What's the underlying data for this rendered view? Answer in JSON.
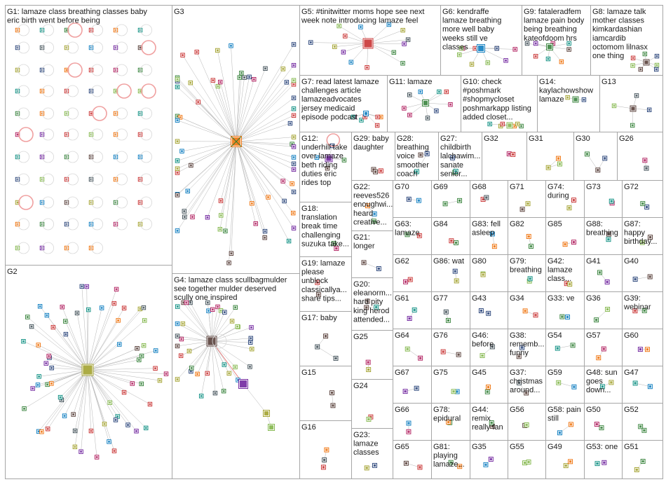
{
  "panels": [
    {
      "id": "G1",
      "lines": [
        "G1: lamaze class breathing classes baby",
        "eric birth went before being"
      ]
    },
    {
      "id": "G2",
      "lines": [
        "G2"
      ]
    },
    {
      "id": "G3",
      "lines": [
        "G3"
      ]
    },
    {
      "id": "G4",
      "lines": [
        "G4: lamaze class scullbagmulder",
        "see together mulder deserved",
        "scully one inspired"
      ]
    },
    {
      "id": "G5",
      "lines": [
        "G5: #tinitwitter moms hope see next",
        "week note introducing lamaze feel"
      ]
    },
    {
      "id": "G6",
      "lines": [
        "G6: kendraffe",
        "lamaze breathing",
        "more well baby",
        "weeks still ve",
        "classes"
      ]
    },
    {
      "id": "G9",
      "lines": [
        "G9: fataleradfem",
        "lamaze pain body",
        "being breathing",
        "kateofdoom hrs"
      ]
    },
    {
      "id": "G8",
      "lines": [
        "G8: lamaze talk",
        "mother classes",
        "kimkardashian",
        "iamcardib",
        "octomom lilnasx",
        "one thing"
      ]
    },
    {
      "id": "G7",
      "lines": [
        "G7: read latest lamaze",
        "challenges article",
        "lamazeadvocates",
        "jersey medicaid",
        "episode podcast"
      ]
    },
    {
      "id": "G11",
      "lines": [
        "G11: lamaze"
      ]
    },
    {
      "id": "G10",
      "lines": [
        "G10: check",
        "#poshmark",
        "#shopmycloset",
        "poshmarkapp listing",
        "added closet..."
      ]
    },
    {
      "id": "G14",
      "lines": [
        "G14:",
        "kaylachowshow",
        "lamaze"
      ]
    },
    {
      "id": "G13",
      "lines": [
        "G13"
      ]
    },
    {
      "id": "G12",
      "lines": [
        "G12:",
        "underhill take",
        "over lamaze",
        "beth riding",
        "duties eric",
        "rides top"
      ]
    },
    {
      "id": "G29",
      "lines": [
        "G29: baby",
        "daughter"
      ]
    },
    {
      "id": "G28",
      "lines": [
        "G28:",
        "breathing",
        "voice",
        "smoother",
        "coach"
      ]
    },
    {
      "id": "G27",
      "lines": [
        "G27:",
        "childbirth",
        "lalchawim...",
        "sanate",
        "senior..."
      ]
    },
    {
      "id": "G32",
      "lines": [
        "G32"
      ]
    },
    {
      "id": "G31",
      "lines": [
        "G31"
      ]
    },
    {
      "id": "G30",
      "lines": [
        "G30"
      ]
    },
    {
      "id": "G26",
      "lines": [
        "G26"
      ]
    },
    {
      "id": "G18",
      "lines": [
        "G18:",
        "translation",
        "break time",
        "challenging",
        "suzuka take..."
      ]
    },
    {
      "id": "G22",
      "lines": [
        "G22:",
        "reeves526",
        "enoughwi...",
        "heard",
        "creative..."
      ]
    },
    {
      "id": "G21",
      "lines": [
        "G21:",
        "longer"
      ]
    },
    {
      "id": "G19",
      "lines": [
        "G19: lamaze",
        "please",
        "unblock",
        "classicallya...",
        "share tips..."
      ]
    },
    {
      "id": "G20",
      "lines": [
        "G20:",
        "eleanorm...",
        "hard pity",
        "king herod",
        "attended..."
      ]
    },
    {
      "id": "G17",
      "lines": [
        "G17: baby"
      ]
    },
    {
      "id": "G25",
      "lines": [
        "G25"
      ]
    },
    {
      "id": "G15",
      "lines": [
        "G15"
      ]
    },
    {
      "id": "G24",
      "lines": [
        "G24"
      ]
    },
    {
      "id": "G16",
      "lines": [
        "G16"
      ]
    },
    {
      "id": "G23",
      "lines": [
        "G23:",
        "lamaze",
        "classes"
      ]
    },
    {
      "id": "G70",
      "lines": [
        "G70"
      ]
    },
    {
      "id": "G69",
      "lines": [
        "G69"
      ]
    },
    {
      "id": "G68",
      "lines": [
        "G68"
      ]
    },
    {
      "id": "G71",
      "lines": [
        "G71"
      ]
    },
    {
      "id": "G74",
      "lines": [
        "G74:",
        "during"
      ]
    },
    {
      "id": "G73",
      "lines": [
        "G73"
      ]
    },
    {
      "id": "G72",
      "lines": [
        "G72"
      ]
    },
    {
      "id": "G63",
      "lines": [
        "G63:",
        "lamaze"
      ]
    },
    {
      "id": "G84",
      "lines": [
        "G84"
      ]
    },
    {
      "id": "G83",
      "lines": [
        "G83: fell",
        "asleep"
      ]
    },
    {
      "id": "G82",
      "lines": [
        "G82"
      ]
    },
    {
      "id": "G85",
      "lines": [
        "G85"
      ]
    },
    {
      "id": "G88",
      "lines": [
        "G88:",
        "breathing"
      ]
    },
    {
      "id": "G87",
      "lines": [
        "G87:",
        "happy",
        "birthday..."
      ]
    },
    {
      "id": "G62",
      "lines": [
        "G62"
      ]
    },
    {
      "id": "G86",
      "lines": [
        "G86: wat"
      ]
    },
    {
      "id": "G80",
      "lines": [
        "G80"
      ]
    },
    {
      "id": "G79",
      "lines": [
        "G79:",
        "breathing"
      ]
    },
    {
      "id": "G42",
      "lines": [
        "G42:",
        "lamaze",
        "class..."
      ]
    },
    {
      "id": "G41",
      "lines": [
        "G41"
      ]
    },
    {
      "id": "G40",
      "lines": [
        "G40"
      ]
    },
    {
      "id": "G61",
      "lines": [
        "G61"
      ]
    },
    {
      "id": "G77",
      "lines": [
        "G77"
      ]
    },
    {
      "id": "G43",
      "lines": [
        "G43"
      ]
    },
    {
      "id": "G34",
      "lines": [
        "G34"
      ]
    },
    {
      "id": "G33",
      "lines": [
        "G33: ve"
      ]
    },
    {
      "id": "G36",
      "lines": [
        "G36"
      ]
    },
    {
      "id": "G39",
      "lines": [
        "G39:",
        "webinar"
      ]
    },
    {
      "id": "G64",
      "lines": [
        "G64"
      ]
    },
    {
      "id": "G76",
      "lines": [
        "G76"
      ]
    },
    {
      "id": "G46",
      "lines": [
        "G46:",
        "before"
      ]
    },
    {
      "id": "G38",
      "lines": [
        "G38:",
        "rememb...",
        "funny"
      ]
    },
    {
      "id": "G54",
      "lines": [
        "G54"
      ]
    },
    {
      "id": "G57",
      "lines": [
        "G57"
      ]
    },
    {
      "id": "G60",
      "lines": [
        "G60"
      ]
    },
    {
      "id": "G67",
      "lines": [
        "G67"
      ]
    },
    {
      "id": "G75",
      "lines": [
        "G75"
      ]
    },
    {
      "id": "G45",
      "lines": [
        "G45"
      ]
    },
    {
      "id": "G37",
      "lines": [
        "G37:",
        "christmas",
        "around..."
      ]
    },
    {
      "id": "G59",
      "lines": [
        "G59"
      ]
    },
    {
      "id": "G48",
      "lines": [
        "G48: sun",
        "goes",
        "down..."
      ]
    },
    {
      "id": "G47",
      "lines": [
        "G47"
      ]
    },
    {
      "id": "G66",
      "lines": [
        "G66"
      ]
    },
    {
      "id": "G78",
      "lines": [
        "G78:",
        "epidural"
      ]
    },
    {
      "id": "G44",
      "lines": [
        "G44:",
        "remix",
        "really fan"
      ]
    },
    {
      "id": "G56",
      "lines": [
        "G56"
      ]
    },
    {
      "id": "G58",
      "lines": [
        "G58: pain",
        "still"
      ]
    },
    {
      "id": "G50",
      "lines": [
        "G50"
      ]
    },
    {
      "id": "G52",
      "lines": [
        "G52"
      ]
    },
    {
      "id": "G65",
      "lines": [
        "G65"
      ]
    },
    {
      "id": "G81",
      "lines": [
        "G81:",
        "playing",
        "lamaze..."
      ]
    },
    {
      "id": "G35",
      "lines": [
        "G35"
      ]
    },
    {
      "id": "G55",
      "lines": [
        "G55"
      ]
    },
    {
      "id": "G49",
      "lines": [
        "G49"
      ]
    },
    {
      "id": "G53",
      "lines": [
        "G53: one"
      ]
    },
    {
      "id": "G51",
      "lines": [
        "G51"
      ]
    }
  ],
  "colors": {
    "panel_border": "#a6a6a6",
    "edge": "#b4b4b4",
    "highlight_edge": "#e36a6a",
    "node_palette": [
      "#1f3b73",
      "#2e7d32",
      "#c62828",
      "#6a1b9a",
      "#0277bd",
      "#ef6c00",
      "#00897b",
      "#9e9d24",
      "#ad1457",
      "#4e342e",
      "#37474f",
      "#7cb342"
    ]
  }
}
